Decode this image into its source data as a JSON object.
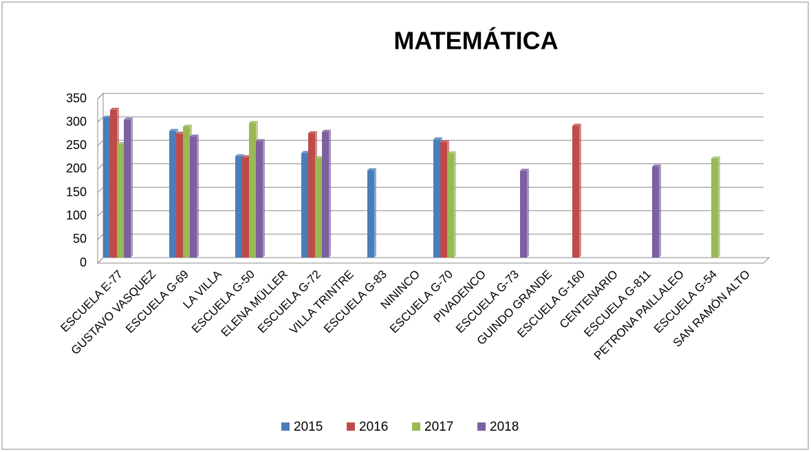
{
  "chart_data": {
    "type": "bar",
    "title": "MATEMÁTICA",
    "categories": [
      "ESCUELA E-77",
      "GUSTAVO VASQUEZ",
      "ESCUELA G-69",
      "LA VILLA",
      "ESCUELA G-50",
      "ELENA MÜLLER",
      "ESCUELA G-72",
      "VILLA TRINTRE",
      "ESCUELA G-83",
      "NININCO",
      "ESCUELA G-70",
      "PIVADENCO",
      "ESCUELA G-73",
      "GUINDO GRANDE",
      "ESCUELA G-160",
      "CENTENARIO",
      "ESCUELA G-811",
      "PETRONA PAILLALEO",
      "ESCUELA G-54",
      "SAN RAMÓN ALTO"
    ],
    "series": [
      {
        "name": "2015",
        "color": "#4a7ebb",
        "values": [
          298,
          null,
          270,
          null,
          216,
          null,
          223,
          null,
          186,
          null,
          252,
          null,
          null,
          null,
          null,
          null,
          null,
          null,
          null,
          null
        ]
      },
      {
        "name": "2016",
        "color": "#be4b48",
        "values": [
          315,
          null,
          264,
          null,
          214,
          null,
          265,
          null,
          null,
          null,
          246,
          null,
          null,
          null,
          281,
          null,
          null,
          null,
          null,
          null
        ]
      },
      {
        "name": "2017",
        "color": "#98b954",
        "values": [
          242,
          null,
          279,
          null,
          287,
          null,
          212,
          null,
          null,
          null,
          222,
          null,
          null,
          null,
          null,
          null,
          null,
          null,
          211,
          null
        ]
      },
      {
        "name": "2018",
        "color": "#7d60a0",
        "values": [
          294,
          null,
          258,
          null,
          248,
          null,
          268,
          null,
          null,
          null,
          null,
          null,
          185,
          null,
          null,
          null,
          194,
          null,
          null,
          null
        ]
      }
    ],
    "ylim": [
      0,
      350
    ],
    "yticks": [
      0,
      50,
      100,
      150,
      200,
      250,
      300,
      350
    ],
    "grid": true,
    "legend": "bottom"
  }
}
